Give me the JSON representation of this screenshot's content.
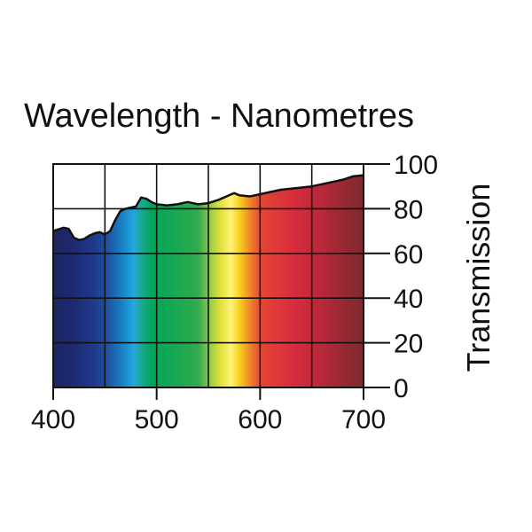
{
  "chart_data": {
    "type": "area",
    "title": "Wavelength - Nanometres",
    "xlabel": "",
    "ylabel": "Transmission",
    "xlim": [
      400,
      700
    ],
    "ylim": [
      0,
      100
    ],
    "x_ticks": [
      "400",
      "500",
      "600",
      "700"
    ],
    "y_ticks": [
      "0",
      "20",
      "40",
      "60",
      "80",
      "100"
    ],
    "grid": true,
    "series": [
      {
        "name": "Transmission",
        "x": [
          400,
          410,
          415,
          420,
          425,
          430,
          435,
          440,
          445,
          450,
          455,
          460,
          465,
          470,
          475,
          480,
          485,
          490,
          495,
          500,
          510,
          520,
          530,
          540,
          550,
          560,
          570,
          575,
          580,
          590,
          600,
          610,
          620,
          630,
          640,
          650,
          660,
          670,
          680,
          690,
          700
        ],
        "values": [
          70,
          71.5,
          71,
          67,
          66,
          66.5,
          68,
          69,
          69.5,
          68.5,
          70,
          75,
          79,
          80,
          80.5,
          81,
          85,
          84.5,
          83,
          82,
          81.5,
          82,
          83,
          82,
          82.5,
          84,
          86,
          87,
          86,
          85.5,
          86.5,
          87.5,
          88.5,
          89,
          89.5,
          90,
          91,
          92,
          93,
          94.5,
          95
        ]
      }
    ],
    "spectrum_colors": [
      {
        "x": 400,
        "color": "#1b2560"
      },
      {
        "x": 420,
        "color": "#1e2a72"
      },
      {
        "x": 440,
        "color": "#1f3a8a"
      },
      {
        "x": 455,
        "color": "#1e5aa8"
      },
      {
        "x": 468,
        "color": "#1a86c8"
      },
      {
        "x": 478,
        "color": "#22a8e0"
      },
      {
        "x": 486,
        "color": "#1aa88a"
      },
      {
        "x": 495,
        "color": "#00a65a"
      },
      {
        "x": 540,
        "color": "#2fab4e"
      },
      {
        "x": 552,
        "color": "#9acb4a"
      },
      {
        "x": 562,
        "color": "#e5e23a"
      },
      {
        "x": 572,
        "color": "#fff27a"
      },
      {
        "x": 580,
        "color": "#f7d21c"
      },
      {
        "x": 590,
        "color": "#f08a2a"
      },
      {
        "x": 600,
        "color": "#e54735"
      },
      {
        "x": 630,
        "color": "#d92d3c"
      },
      {
        "x": 660,
        "color": "#b8283a"
      },
      {
        "x": 700,
        "color": "#7a2a2e"
      }
    ],
    "outline_color": "#111111",
    "grid_color": "#111111"
  }
}
